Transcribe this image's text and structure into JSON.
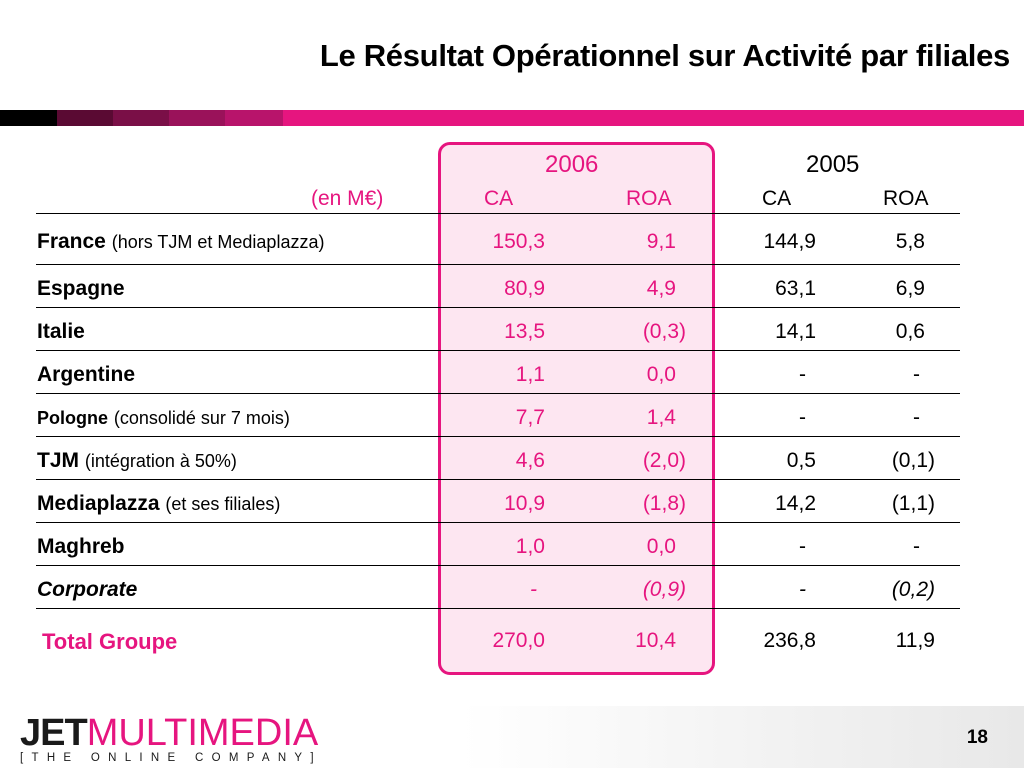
{
  "title": "Le Résultat Opérationnel sur Activité par filiales",
  "colors": {
    "accent": "#e6157f",
    "highlight_bg": "#fde6f1"
  },
  "table": {
    "unit_label": "(en M€)",
    "year_2006": "2006",
    "year_2005": "2005",
    "col_ca": "CA",
    "col_roa": "ROA",
    "rows": [
      {
        "name": "France",
        "note": "(hors TJM et Mediaplazza)",
        "ca2006": "150,3",
        "roa2006": "9,1",
        "ca2005": "144,9",
        "roa2005": "5,8"
      },
      {
        "name": "Espagne",
        "note": "",
        "ca2006": "80,9",
        "roa2006": "4,9",
        "ca2005": "63,1",
        "roa2005": "6,9"
      },
      {
        "name": "Italie",
        "note": "",
        "ca2006": "13,5",
        "roa2006": "(0,3)",
        "ca2005": "14,1",
        "roa2005": "0,6"
      },
      {
        "name": "Argentine",
        "note": "",
        "ca2006": "1,1",
        "roa2006": "0,0",
        "ca2005": "-",
        "roa2005": "-"
      },
      {
        "name": "Pologne",
        "note": "(consolidé sur 7 mois)",
        "ca2006": "7,7",
        "roa2006": "1,4",
        "ca2005": "-",
        "roa2005": "-"
      },
      {
        "name": "TJM",
        "note": "(intégration à 50%)",
        "ca2006": "4,6",
        "roa2006": "(2,0)",
        "ca2005": "0,5",
        "roa2005": "(0,1)"
      },
      {
        "name": "Mediaplazza",
        "note": "(et ses filiales)",
        "ca2006": "10,9",
        "roa2006": "(1,8)",
        "ca2005": "14,2",
        "roa2005": "(1,1)"
      },
      {
        "name": "Maghreb",
        "note": "",
        "ca2006": "1,0",
        "roa2006": "0,0",
        "ca2005": "-",
        "roa2005": "-"
      },
      {
        "name": "Corporate",
        "note": "",
        "ca2006": "-",
        "roa2006": "(0,9)",
        "ca2005": "-",
        "roa2005": "(0,2)"
      }
    ],
    "total": {
      "name": "Total Groupe",
      "ca2006": "270,0",
      "roa2006": "10,4",
      "ca2005": "236,8",
      "roa2005": "11,9"
    }
  },
  "footer": {
    "logo_jet": "JET",
    "logo_multimedia": "MULTIMEDIA",
    "tagline": "[THE ONLINE COMPANY]",
    "page_number": "18"
  }
}
